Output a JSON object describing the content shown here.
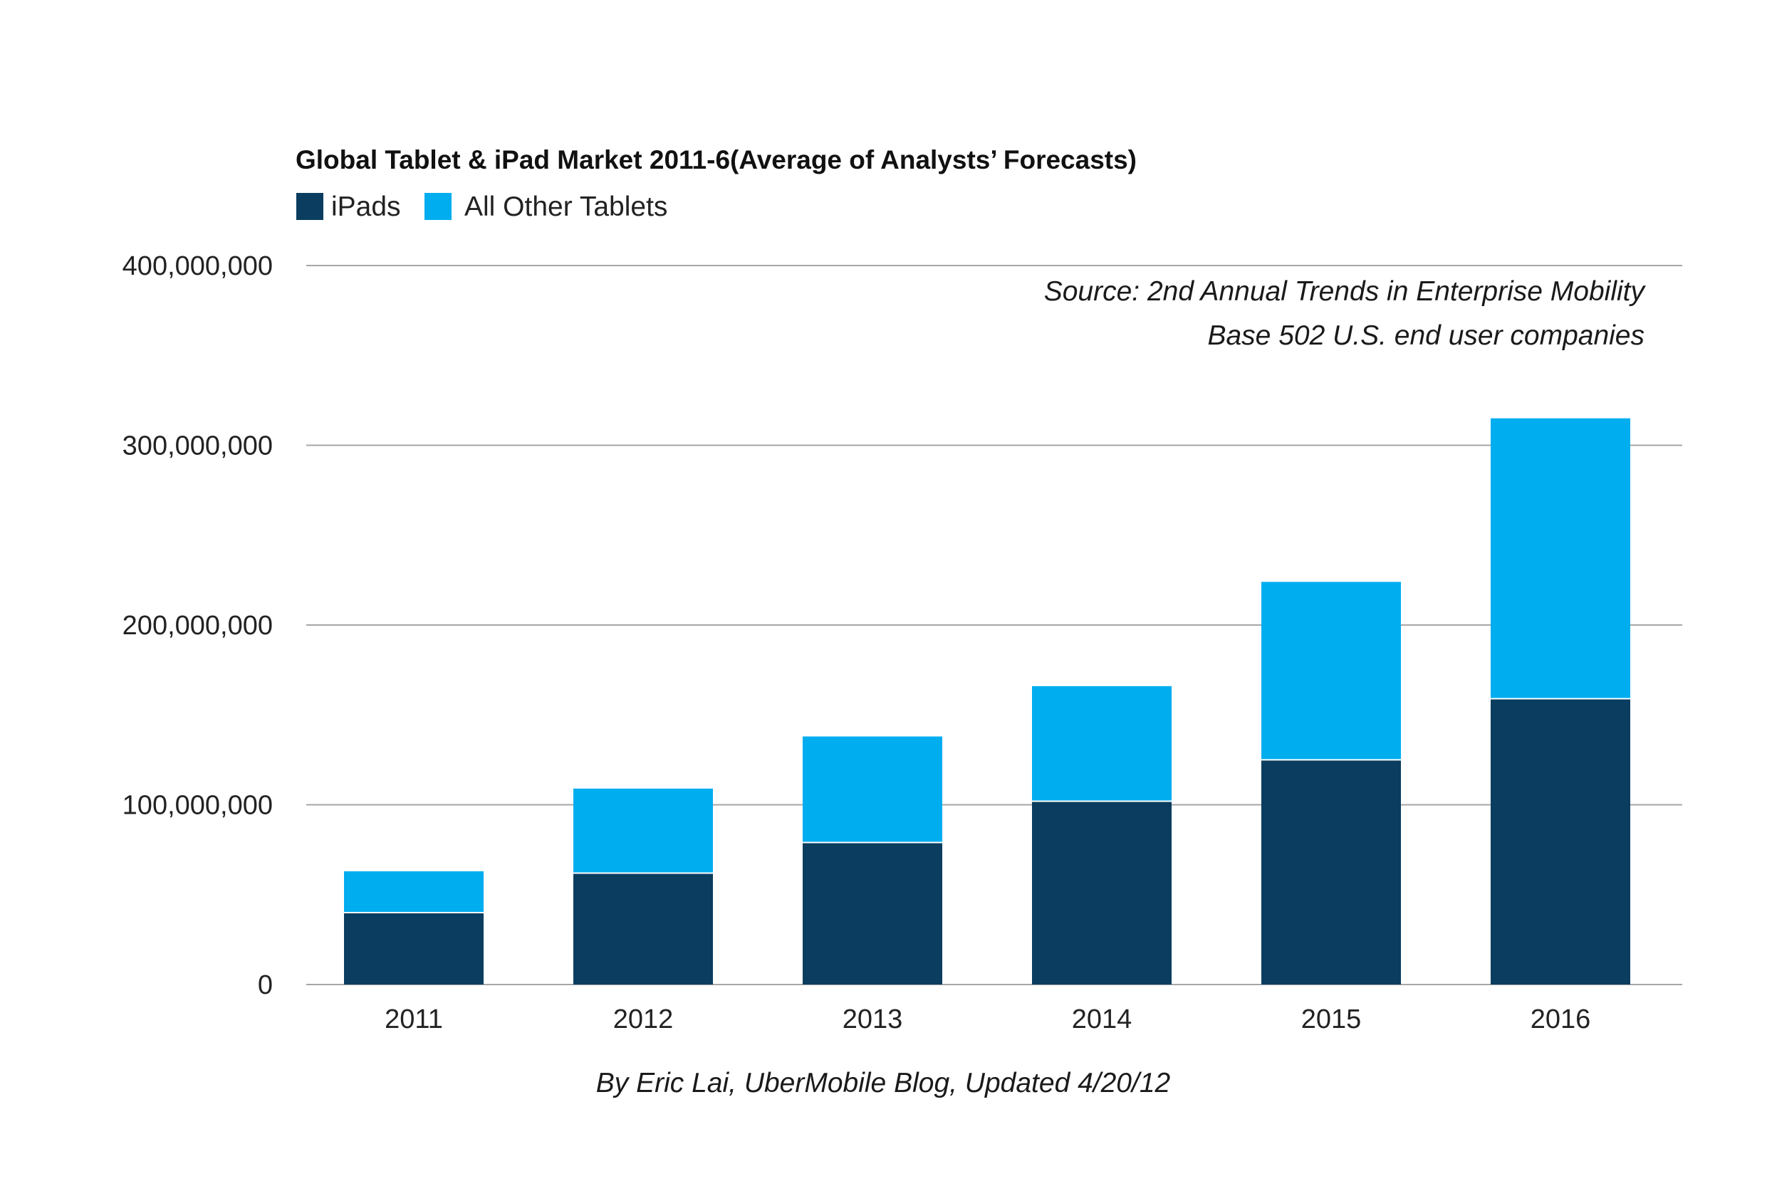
{
  "chart_data": {
    "type": "bar",
    "stacked": true,
    "title": "Global Tablet & iPad Market 2011-6(Average of Analysts’ Forecasts)",
    "xlabel": "",
    "ylabel": "",
    "categories": [
      "2011",
      "2012",
      "2013",
      "2014",
      "2015",
      "2016"
    ],
    "series": [
      {
        "name": "iPads",
        "color": "#0a3d5f",
        "values": [
          40000000,
          62000000,
          79000000,
          102000000,
          125000000,
          159000000
        ]
      },
      {
        "name": "All Other Tablets",
        "color": "#00adef",
        "values": [
          23000000,
          47000000,
          59000000,
          64000000,
          99000000,
          156000000
        ]
      }
    ],
    "ylim": [
      0,
      400000000
    ],
    "yticks": [
      0,
      100000000,
      200000000,
      300000000,
      400000000
    ],
    "ytick_labels": [
      "0",
      "100,000,000",
      "200,000,000",
      "300,000,000",
      "400,000,000"
    ],
    "grid": true,
    "legend_position": "top-left",
    "annotations": {
      "source_line1": "Source: 2nd Annual Trends in Enterprise Mobility",
      "source_line2": "Base 502 U.S. end user companies",
      "footer": "By Eric Lai, UberMobile Blog, Updated 4/20/12"
    }
  }
}
